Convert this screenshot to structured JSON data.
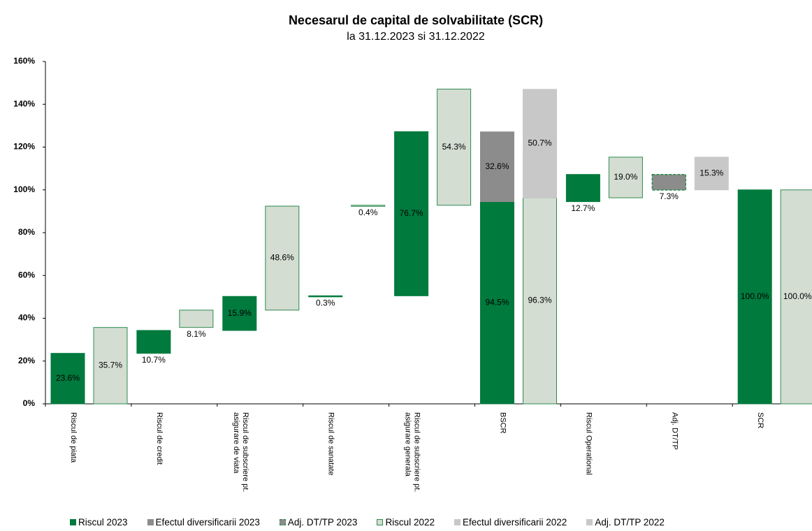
{
  "chart_data": {
    "type": "waterfall",
    "title": "Necesarul de capital de solvabilitate (SCR)",
    "subtitle": "la 31.12.2023 si 31.12.2022",
    "categories": [
      "Riscul de piata",
      "Riscul de credit",
      "Riscul de subscriere pt. asigurare de viata",
      "Riscul de sanatate",
      "Riscul de subscriere pt. asigurare generala",
      "BSCR",
      "Riscul Operational",
      "Adj. DT/TP",
      "SCR"
    ],
    "series": [
      {
        "name": "Riscul 2023",
        "color": "#007a3d",
        "values": [
          23.6,
          10.7,
          15.9,
          0.3,
          76.7,
          94.5,
          12.7,
          null,
          100.0
        ],
        "value_labels": [
          "23.6%",
          "10.7%",
          "15.9%",
          "0.3%",
          "76.7%",
          "94.5%",
          "12.7%",
          null,
          "100.0%"
        ]
      },
      {
        "name": "Efectul diversificarii 2023",
        "color": "#8c8c8c",
        "values": [
          null,
          null,
          null,
          null,
          null,
          32.6,
          null,
          null,
          null
        ],
        "value_labels": [
          null,
          null,
          null,
          null,
          null,
          "32.6%",
          null,
          null,
          null
        ]
      },
      {
        "name": "Adj. DT/TP 2023",
        "color": "#8c8c8c",
        "values": [
          null,
          null,
          null,
          null,
          null,
          null,
          null,
          7.3,
          null
        ],
        "value_labels": [
          null,
          null,
          null,
          null,
          null,
          null,
          null,
          "7.3%",
          null
        ]
      },
      {
        "name": "Riscul 2022",
        "color": "#d3ddd2",
        "values": [
          35.7,
          8.1,
          48.6,
          0.4,
          54.3,
          96.3,
          19.0,
          null,
          100.0
        ],
        "value_labels": [
          "35.7%",
          "8.1%",
          "48.6%",
          "0.4%",
          "54.3%",
          "96.3%",
          "19.0%",
          null,
          "100.0%"
        ]
      },
      {
        "name": "Efectul diversificarii 2022",
        "color": "#c8c8c8",
        "values": [
          null,
          null,
          null,
          null,
          null,
          50.7,
          null,
          null,
          null
        ],
        "value_labels": [
          null,
          null,
          null,
          null,
          null,
          "50.7%",
          null,
          null,
          null
        ]
      },
      {
        "name": "Adj. DT/TP 2022",
        "color": "#c8c8c8",
        "values": [
          null,
          null,
          null,
          null,
          null,
          null,
          null,
          15.3,
          null
        ],
        "value_labels": [
          null,
          null,
          null,
          null,
          null,
          null,
          null,
          "15.3%",
          null
        ]
      }
    ],
    "ylim": [
      0,
      160
    ],
    "yticks": [
      {
        "value": 0,
        "label": "0%"
      },
      {
        "value": 20,
        "label": "20%"
      },
      {
        "value": 40,
        "label": "40%"
      },
      {
        "value": 60,
        "label": "60%"
      },
      {
        "value": 80,
        "label": "80%"
      },
      {
        "value": 100,
        "label": "100%"
      },
      {
        "value": 120,
        "label": "120%"
      },
      {
        "value": 140,
        "label": "140%"
      },
      {
        "value": 160,
        "label": "160%"
      }
    ],
    "grid": false,
    "legend": "bottom"
  }
}
